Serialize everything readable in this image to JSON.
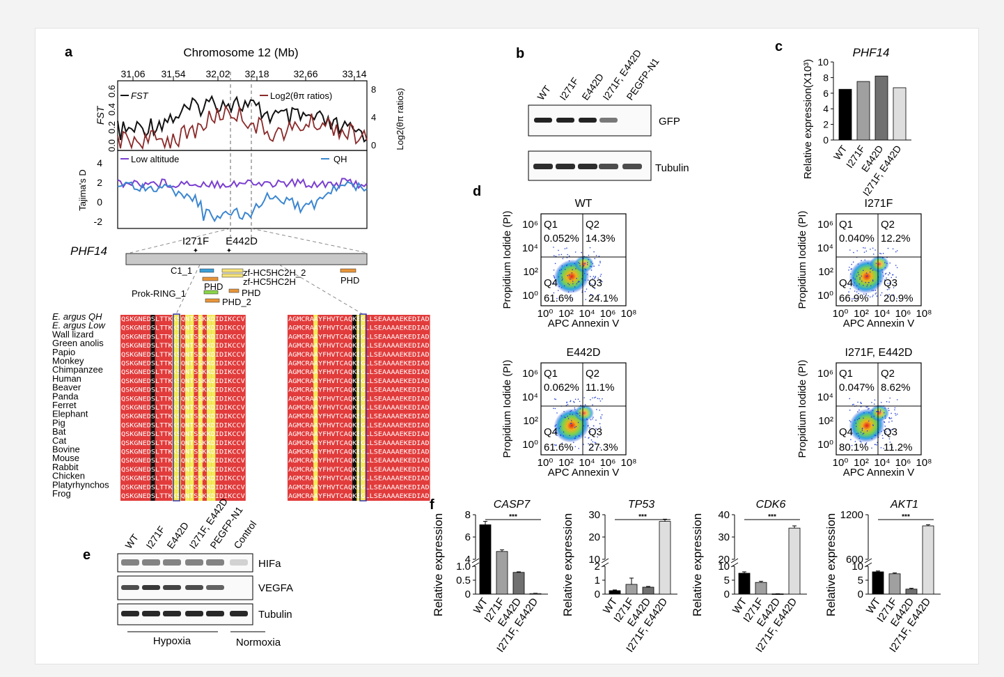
{
  "panel_labels": {
    "a": "a",
    "b": "b",
    "c": "c",
    "d": "d",
    "e": "e",
    "f": "f"
  },
  "panel_a": {
    "chrom_title": "Chromosome 12 (Mb)",
    "top_ticks": [
      "31.06",
      "31.54",
      "32.02",
      "32.18",
      "32.66",
      "33.14"
    ],
    "fst_legend": "FST",
    "log2_legend": "Log2(θπ ratios)",
    "fst_axis": "FST",
    "fst_ticks": [
      "0.0",
      "0.2",
      "0.4",
      "0.6"
    ],
    "log2_axis": "Log2(θπ ratios)",
    "log2_ticks": [
      "0",
      "4",
      "8"
    ],
    "tajima_axis": "Tajima's D",
    "tajima_ticks": [
      "4",
      "2",
      "0",
      "-2"
    ],
    "low_legend": "Low altitude",
    "qh_legend": "QH",
    "gene": "PHF14",
    "mut1": "I271F",
    "mut2": "E442D",
    "domains": [
      "C1_1",
      "zf-HC5HC2H_2",
      "PHD",
      "zf-HC5HC2H",
      "PHD",
      "Prok-RING_1",
      "PHD",
      "PHD_2"
    ],
    "species": [
      "E. argus QH",
      "E. argus Low",
      "Wall lizard",
      "Green anolis",
      "Papio",
      "Monkey",
      "Chimpanzee",
      "Human",
      "Beaver",
      "Panda",
      "Ferret",
      "Elephant",
      "Pig",
      "Bat",
      "Cat",
      "Bovine",
      "Mouse",
      "Rabbit",
      "Chicken",
      "Platyrhynchos",
      "Frog"
    ],
    "seq_left": "QSKGNEDSLTTKKSQNTSSKKDIDIKCCV",
    "seq_right": "AGMCRAAYFHVTCAQKEGLLSEAAAAEKEDIAD"
  },
  "panel_b": {
    "lanes": [
      "WT",
      "I271F",
      "E442D",
      "I271F, E442D",
      "PEGFP-N1"
    ],
    "rows": [
      "GFP",
      "Tubulin"
    ]
  },
  "panel_c": {
    "title": "PHF14",
    "ylabel": "Relative expression(X10³)",
    "yticks": [
      "0",
      "2",
      "4",
      "6",
      "8",
      "10"
    ]
  },
  "panel_d": {
    "plots": [
      {
        "title": "WT",
        "q1": "0.052%",
        "q2": "14.3%",
        "q3": "24.1%",
        "q4": "61.6%"
      },
      {
        "title": "I271F",
        "q1": "0.040%",
        "q2": "12.2%",
        "q3": "20.9%",
        "q4": "66.9%"
      },
      {
        "title": "E442D",
        "q1": "0.062%",
        "q2": "11.1%",
        "q3": "27.3%",
        "q4": "61.6%"
      },
      {
        "title": "I271F, E442D",
        "q1": "0.047%",
        "q2": "8.62%",
        "q3": "11.2%",
        "q4": "80.1%"
      }
    ],
    "q_names": [
      "Q1",
      "Q2",
      "Q3",
      "Q4"
    ],
    "xlabel": "APC Annexin V",
    "ylabel": "Propidium Iodide (PI)",
    "xticks": [
      "10⁰",
      "10²",
      "10⁴",
      "10⁶",
      "10⁸"
    ],
    "yticks": [
      "10⁶",
      "10⁴",
      "10²",
      "10⁰"
    ]
  },
  "panel_e": {
    "lanes": [
      "WT",
      "I271F",
      "E442D",
      "I271F, E442D",
      "PEGFP-N1",
      "Control"
    ],
    "rows": [
      "HIFa",
      "VEGFA",
      "Tubulin"
    ],
    "hypoxia": "Hypoxia",
    "normoxia": "Normoxia"
  },
  "panel_f": {
    "ylabel": "Relative expression",
    "sig": "***",
    "groups": [
      "WT",
      "I271F",
      "E442D",
      "I271F, E442D"
    ]
  },
  "chart_data": [
    {
      "type": "bar",
      "title": "PHF14",
      "ylabel": "Relative expression(X10³)",
      "categories": [
        "WT",
        "I271F",
        "E442D",
        "I271F, E442D"
      ],
      "values": [
        6.5,
        7.5,
        8.2,
        6.7
      ],
      "ylim": [
        0,
        10
      ],
      "colors": [
        "#000000",
        "#a0a0a0",
        "#707070",
        "#dedede"
      ]
    },
    {
      "type": "bar",
      "title": "CASP7",
      "ylabel": "Relative expression",
      "categories": [
        "WT",
        "I271F",
        "E442D",
        "I271F, E442D"
      ],
      "values": [
        7.1,
        4.7,
        0.78,
        0.02
      ],
      "errors": [
        0.3,
        0.15,
        0.02,
        0.01
      ],
      "yticks": [
        "0",
        "0.5",
        "1.0",
        "4",
        "6",
        "8"
      ],
      "significance": "***"
    },
    {
      "type": "bar",
      "title": "TP53",
      "ylabel": "Relative expression",
      "categories": [
        "WT",
        "I271F",
        "E442D",
        "I271F, E442D"
      ],
      "values": [
        0.25,
        0.7,
        0.5,
        27
      ],
      "errors": [
        0.05,
        0.45,
        0.05,
        1.0
      ],
      "yticks": [
        "0",
        "1",
        "2",
        "10",
        "20",
        "30"
      ],
      "significance": "***"
    },
    {
      "type": "bar",
      "title": "CDK6",
      "ylabel": "Relative expression",
      "categories": [
        "WT",
        "I271F",
        "E442D",
        "I271F, E442D"
      ],
      "values": [
        7.5,
        4.2,
        0.1,
        34
      ],
      "errors": [
        0.5,
        0.4,
        0.05,
        1.0
      ],
      "yticks": [
        "0",
        "5",
        "10",
        "20",
        "30",
        "40"
      ],
      "significance": "***"
    },
    {
      "type": "bar",
      "title": "AKT1",
      "ylabel": "Relative expression",
      "categories": [
        "WT",
        "I271F",
        "E442D",
        "I271F, E442D"
      ],
      "values": [
        8,
        7.3,
        1.8,
        1050
      ],
      "errors": [
        0.3,
        0.3,
        0.3,
        15
      ],
      "yticks": [
        "0",
        "5",
        "10",
        "600",
        "1200"
      ],
      "significance": "***"
    }
  ]
}
